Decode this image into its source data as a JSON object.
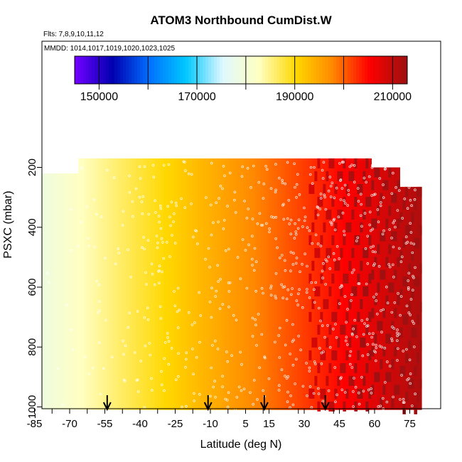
{
  "chart_data": {
    "type": "heatmap",
    "title": "ATOM3 Northbound CumDist.W",
    "flights_note": "Flts: 7,8,9,10,11,12",
    "dates_note": "MMDD: 1014,1017,1019,1020,1023,1025",
    "xlabel": "Latitude (deg N)",
    "ylabel": "PSXC (mbar)",
    "xlim": [
      -85,
      85
    ],
    "ylim": [
      1020,
      0
    ],
    "x_ticks": [
      "-85",
      "-70",
      "-55",
      "-40",
      "-25",
      "-10",
      "5",
      "15",
      "30",
      "45",
      "60",
      "75"
    ],
    "x_tick_values": [
      -85,
      -70,
      -55,
      -40,
      -25,
      -10,
      5,
      15,
      30,
      45,
      60,
      75
    ],
    "y_ticks": [
      "200",
      "400",
      "600",
      "800",
      "1000"
    ],
    "y_tick_values": [
      200,
      400,
      600,
      800,
      1000
    ],
    "colorbar": {
      "min": 145000,
      "max": 213000,
      "tick_labels": [
        "150000",
        "170000",
        "190000",
        "210000"
      ],
      "tick_values": [
        150000,
        170000,
        190000,
        210000
      ]
    },
    "colors": [
      "#6f00ff",
      "#0000b0",
      "#0070ff",
      "#00c8ff",
      "#e0f8ff",
      "#ffffc0",
      "#ffd800",
      "#ff8800",
      "#ff0000",
      "#a01010"
    ],
    "field": {
      "lat_range": [
        -82,
        80
      ],
      "pressure_top": 170,
      "pressure_bottom": 1010,
      "value_at_lat_min": 179000,
      "value_at_lat_max": 212000
    },
    "arrow_markers_lat": [
      -54,
      -11,
      13,
      39
    ]
  }
}
